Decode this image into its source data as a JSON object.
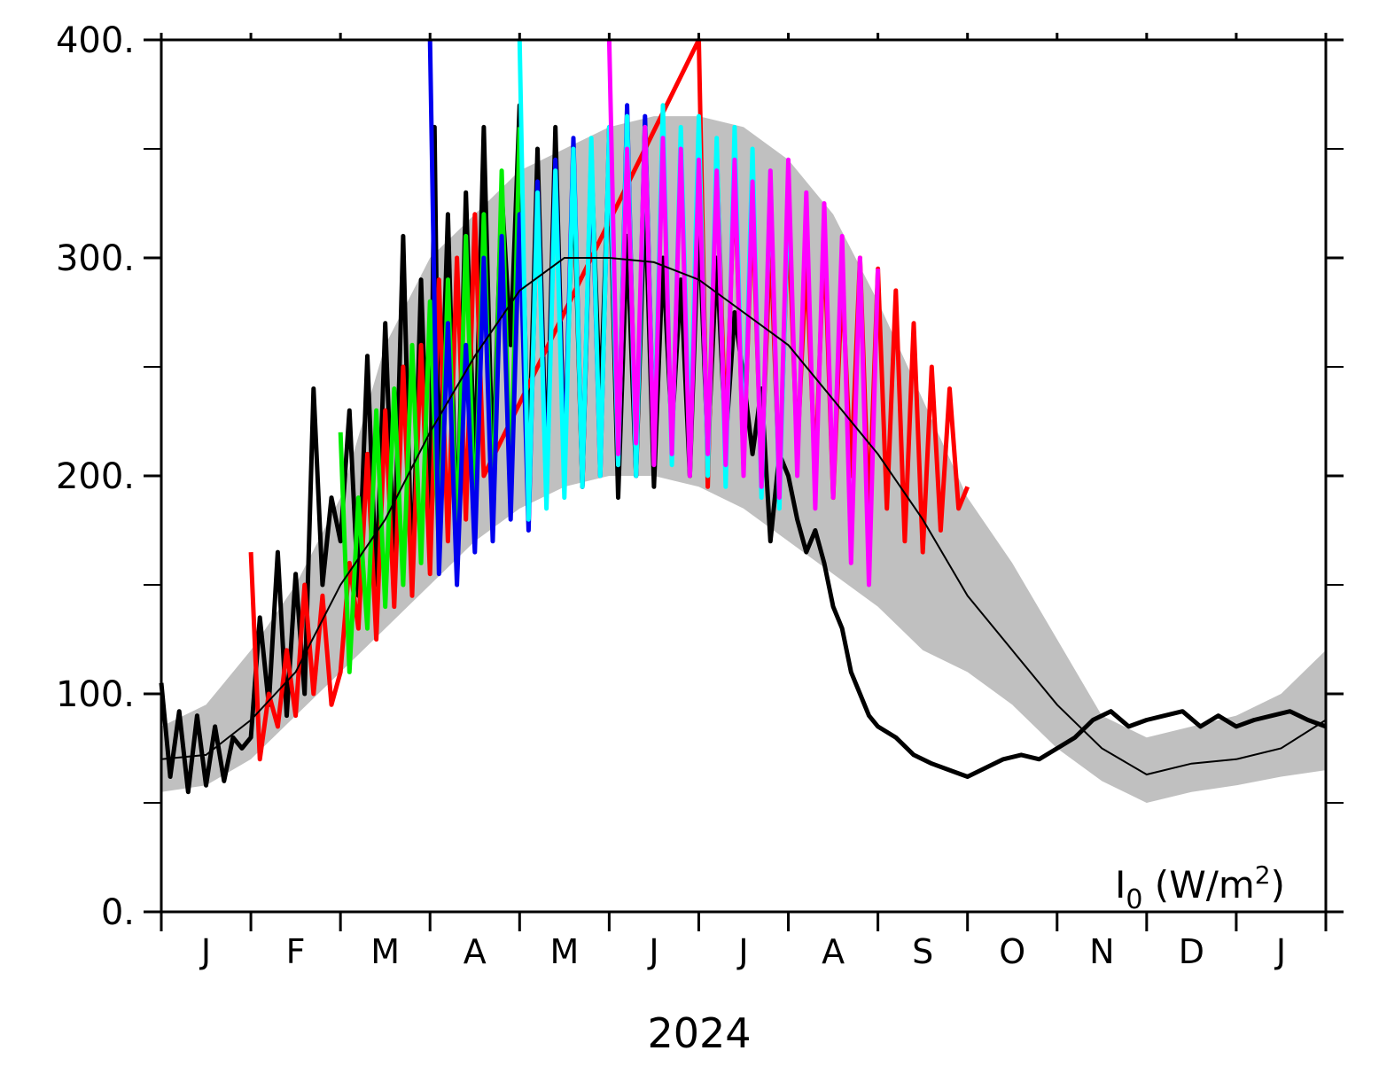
{
  "chart_data": {
    "type": "line",
    "title": "",
    "xlabel": "2024",
    "ylabel": "",
    "annotation": {
      "main": "I",
      "sub": "0",
      "units_open": " (W/m",
      "units_sup": "2",
      "units_close": ")",
      "placement": "bottom-right"
    },
    "ylim": [
      0,
      400
    ],
    "xlim": [
      0,
      13
    ],
    "y_ticks": [
      {
        "value": 0,
        "label": "0."
      },
      {
        "value": 100,
        "label": "100."
      },
      {
        "value": 200,
        "label": "200."
      },
      {
        "value": 300,
        "label": "300."
      },
      {
        "value": 400,
        "label": "400."
      }
    ],
    "y_minor_ticks": [
      50,
      150,
      250,
      350
    ],
    "month_labels": [
      "J",
      "F",
      "M",
      "A",
      "M",
      "J",
      "J",
      "A",
      "S",
      "O",
      "N",
      "D",
      "J"
    ],
    "grid": false,
    "legend": "none",
    "climatology": {
      "mean": {
        "x": [
          0.0,
          0.5,
          1.0,
          1.5,
          2.0,
          2.5,
          3.0,
          3.5,
          4.0,
          4.5,
          5.0,
          5.5,
          6.0,
          6.5,
          7.0,
          7.5,
          8.0,
          8.5,
          9.0,
          9.5,
          10.0,
          10.5,
          11.0,
          11.5,
          12.0,
          12.5,
          13.0
        ],
        "y": [
          70,
          72,
          88,
          110,
          150,
          180,
          220,
          255,
          285,
          300,
          300,
          298,
          290,
          275,
          260,
          235,
          210,
          180,
          145,
          120,
          95,
          75,
          63,
          68,
          70,
          75,
          88
        ]
      },
      "band": {
        "x": [
          0.0,
          0.5,
          1.0,
          1.5,
          2.0,
          2.5,
          3.0,
          3.5,
          4.0,
          4.5,
          5.0,
          5.5,
          6.0,
          6.5,
          7.0,
          7.5,
          8.0,
          8.5,
          9.0,
          9.5,
          10.0,
          10.5,
          11.0,
          11.5,
          12.0,
          12.5,
          13.0
        ],
        "lower": [
          55,
          58,
          70,
          90,
          110,
          130,
          150,
          170,
          185,
          195,
          200,
          200,
          195,
          185,
          170,
          155,
          140,
          120,
          110,
          95,
          75,
          60,
          50,
          55,
          58,
          62,
          65
        ],
        "upper": [
          85,
          95,
          120,
          150,
          190,
          260,
          300,
          320,
          340,
          350,
          360,
          365,
          365,
          360,
          345,
          320,
          280,
          235,
          190,
          160,
          125,
          90,
          80,
          85,
          90,
          100,
          120
        ]
      },
      "colors": {
        "mean": "#000000",
        "band": "#c0c0c0"
      }
    },
    "series": [
      {
        "color": "#000000",
        "x": [
          0.0,
          0.1,
          0.2,
          0.3,
          0.4,
          0.5,
          0.6,
          0.7,
          0.8,
          0.9,
          1.0,
          1.1,
          1.2,
          1.3,
          1.4,
          1.5,
          1.6,
          1.7,
          1.8,
          1.9,
          2.0,
          2.1,
          2.2,
          2.3,
          2.4,
          2.5,
          2.6,
          2.7,
          2.8,
          2.9,
          3.0,
          3.05,
          3.1,
          3.2,
          3.3,
          3.4,
          3.5,
          3.6,
          3.7,
          3.8,
          3.9,
          4.0,
          4.1,
          4.2,
          4.3,
          4.4,
          4.5,
          4.6,
          4.7,
          4.8,
          4.9,
          5.0,
          5.1,
          5.2,
          5.3,
          5.4,
          5.5,
          5.6,
          5.7,
          5.8,
          5.9,
          6.0,
          6.1,
          6.2,
          6.3,
          6.4,
          6.5,
          6.6,
          6.7,
          6.8,
          6.9,
          7.0,
          7.1,
          7.2,
          7.3,
          7.4,
          7.5,
          7.6,
          7.7,
          7.8,
          7.9,
          8.0,
          8.2,
          8.4,
          8.6,
          8.8,
          9.0,
          9.2,
          9.4,
          9.6,
          9.8,
          10.0,
          10.2,
          10.4,
          10.6,
          10.8,
          11.0,
          11.2,
          11.4,
          11.6,
          11.8,
          12.0,
          12.2,
          12.4,
          12.6,
          12.8,
          13.0
        ],
        "y": [
          105,
          62,
          92,
          55,
          90,
          58,
          85,
          60,
          80,
          75,
          80,
          135,
          95,
          165,
          90,
          155,
          100,
          240,
          150,
          190,
          170,
          230,
          145,
          255,
          150,
          270,
          160,
          310,
          150,
          290,
          165,
          360,
          190,
          320,
          170,
          330,
          200,
          360,
          200,
          330,
          260,
          370,
          200,
          350,
          200,
          360,
          205,
          340,
          195,
          345,
          230,
          350,
          190,
          310,
          200,
          330,
          195,
          300,
          220,
          290,
          200,
          320,
          210,
          300,
          215,
          275,
          245,
          210,
          240,
          170,
          210,
          200,
          180,
          165,
          175,
          160,
          140,
          130,
          110,
          100,
          90,
          85,
          80,
          72,
          68,
          65,
          62,
          66,
          70,
          72,
          70,
          75,
          80,
          88,
          92,
          85,
          88,
          90,
          92,
          85,
          90,
          85,
          88,
          90,
          92,
          88,
          85
        ]
      },
      {
        "color": "#ff0000",
        "x": [
          1.0,
          1.1,
          1.2,
          1.3,
          1.4,
          1.5,
          1.6,
          1.7,
          1.8,
          1.9,
          2.0,
          2.1,
          2.2,
          2.3,
          2.4,
          2.5,
          2.6,
          2.7,
          2.8,
          2.9,
          3.0,
          3.1,
          3.2,
          3.3,
          3.4,
          3.5,
          3.6,
          6.0,
          6.1,
          6.2,
          6.3,
          6.4,
          6.5,
          6.6,
          6.7,
          6.8,
          6.9,
          7.0,
          7.1,
          7.2,
          7.3,
          7.4,
          7.5,
          7.6,
          7.7,
          7.8,
          7.9,
          8.0,
          8.1,
          8.2,
          8.3,
          8.4,
          8.5,
          8.6,
          8.7,
          8.8,
          8.9,
          9.0
        ],
        "y": [
          165,
          70,
          100,
          85,
          120,
          90,
          150,
          100,
          145,
          95,
          110,
          160,
          130,
          210,
          125,
          230,
          140,
          250,
          145,
          260,
          155,
          290,
          170,
          300,
          180,
          320,
          200,
          400,
          195,
          350,
          215,
          340,
          205,
          325,
          200,
          310,
          195,
          320,
          210,
          300,
          200,
          310,
          190,
          290,
          200,
          300,
          180,
          295,
          185,
          285,
          170,
          270,
          165,
          250,
          175,
          240,
          185,
          195
        ]
      },
      {
        "color": "#00ee00",
        "x": [
          2.0,
          2.1,
          2.2,
          2.3,
          2.4,
          2.5,
          2.6,
          2.7,
          2.8,
          2.9,
          3.0,
          3.1,
          3.2,
          3.3,
          3.4,
          3.5,
          3.6,
          3.7,
          3.8,
          3.9,
          4.0
        ],
        "y": [
          220,
          110,
          190,
          130,
          230,
          140,
          240,
          150,
          260,
          160,
          280,
          165,
          290,
          170,
          310,
          175,
          320,
          180,
          340,
          190,
          360
        ]
      },
      {
        "color": "#0000ee",
        "x": [
          3.0,
          3.1,
          3.2,
          3.3,
          3.4,
          3.5,
          3.6,
          3.7,
          3.8,
          3.9,
          4.0,
          4.1,
          4.2,
          4.3,
          4.4,
          4.5,
          4.6,
          4.7,
          4.8,
          4.9,
          5.0,
          5.1,
          5.2,
          5.3,
          5.4,
          5.5,
          5.6
        ],
        "y": [
          400,
          155,
          270,
          150,
          260,
          165,
          300,
          170,
          310,
          180,
          320,
          175,
          335,
          190,
          345,
          200,
          355,
          195,
          350,
          200,
          360,
          205,
          370,
          200,
          365,
          210,
          360
        ]
      },
      {
        "color": "#00ffff",
        "x": [
          4.0,
          4.1,
          4.2,
          4.3,
          4.4,
          4.5,
          4.6,
          4.7,
          4.8,
          4.9,
          5.0,
          5.1,
          5.2,
          5.3,
          5.4,
          5.5,
          5.6,
          5.7,
          5.8,
          5.9,
          6.0,
          6.1,
          6.2,
          6.3,
          6.4,
          6.5,
          6.6,
          6.7,
          6.8,
          6.9,
          7.0
        ],
        "y": [
          400,
          180,
          330,
          185,
          340,
          190,
          350,
          195,
          355,
          200,
          360,
          205,
          365,
          200,
          360,
          210,
          370,
          205,
          360,
          210,
          365,
          200,
          355,
          195,
          360,
          205,
          350,
          190,
          340,
          185,
          330
        ]
      },
      {
        "color": "#ff00ff",
        "x": [
          5.0,
          5.1,
          5.2,
          5.3,
          5.4,
          5.5,
          5.6,
          5.7,
          5.8,
          5.9,
          6.0,
          6.1,
          6.2,
          6.3,
          6.4,
          6.5,
          6.6,
          6.7,
          6.8,
          6.9,
          7.0,
          7.1,
          7.2,
          7.3,
          7.4,
          7.5,
          7.6,
          7.7,
          7.8,
          7.9,
          8.0
        ],
        "y": [
          400,
          210,
          350,
          215,
          360,
          205,
          355,
          210,
          350,
          200,
          345,
          210,
          340,
          205,
          345,
          200,
          335,
          195,
          340,
          190,
          345,
          200,
          330,
          185,
          325,
          190,
          310,
          160,
          300,
          150,
          295
        ]
      }
    ]
  }
}
